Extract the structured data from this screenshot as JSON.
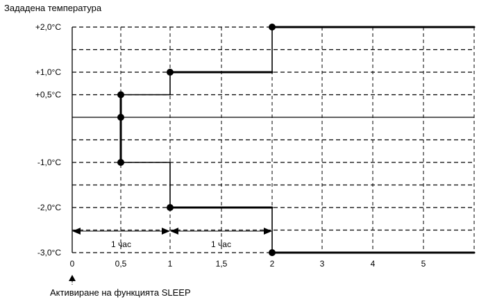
{
  "title": "Зададена температура",
  "footer_caption": "Активиране на функцията SLEEP",
  "chart_data": {
    "type": "line",
    "title": "Зададена температура",
    "xlabel": "",
    "ylabel": "",
    "x_ticks": [
      {
        "value": 0,
        "label": "0"
      },
      {
        "value": 0.5,
        "label": "0,5"
      },
      {
        "value": 1,
        "label": "1"
      },
      {
        "value": 1.5,
        "label": "1,5"
      },
      {
        "value": 2,
        "label": "2"
      },
      {
        "value": 3,
        "label": "3"
      },
      {
        "value": 4,
        "label": "4"
      },
      {
        "value": 5,
        "label": "5"
      }
    ],
    "y_ticks": [
      {
        "value": 2.0,
        "label": "+2,0°C"
      },
      {
        "value": 1.0,
        "label": "+1,0°C"
      },
      {
        "value": 0.5,
        "label": "+0,5°C"
      },
      {
        "value": -1.0,
        "label": "-1,0°C"
      },
      {
        "value": -2.0,
        "label": "-2,0°C"
      },
      {
        "value": -3.0,
        "label": "-3,0°C"
      }
    ],
    "grid": true,
    "series": [
      {
        "points": [
          [
            0.5,
            0
          ],
          [
            0.5,
            0.5
          ],
          [
            1,
            0.5
          ],
          [
            1,
            1
          ],
          [
            2,
            1
          ],
          [
            2,
            2
          ],
          [
            6,
            2
          ]
        ],
        "emphasis_from": 2
      },
      {
        "points": [
          [
            0.5,
            0
          ],
          [
            0.5,
            -1
          ],
          [
            1,
            -1
          ],
          [
            1,
            -2
          ],
          [
            2,
            -2
          ],
          [
            2,
            -3
          ],
          [
            6,
            -3
          ]
        ],
        "emphasis_from": 2
      }
    ],
    "markers": [
      [
        0.5,
        0
      ],
      [
        0.5,
        0.5
      ],
      [
        0.5,
        -1
      ],
      [
        1,
        1
      ],
      [
        1,
        -2
      ],
      [
        2,
        2
      ],
      [
        2,
        -3
      ]
    ],
    "interval_annotations": [
      {
        "from": 0,
        "to": 1,
        "label": "1 час"
      },
      {
        "from": 1,
        "to": 2,
        "label": "1 час"
      }
    ]
  }
}
